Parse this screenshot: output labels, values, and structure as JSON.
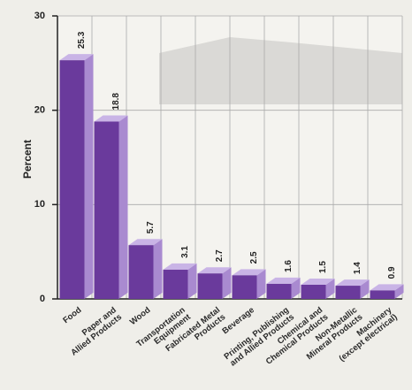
{
  "chart_data": {
    "type": "bar",
    "y_label": "Percent",
    "categories": [
      "Food",
      "Paper and\nAllied Products",
      "Wood",
      "Transportation\nEquipment",
      "Fabricated Metal\nProducts",
      "Beverage",
      "Printing, Publishing\nand Allied Products",
      "Chemical and\nChemical Products",
      "Non-Metallic\nMineral Products",
      "Machinery\n(except electrical)"
    ],
    "values": [
      25.3,
      18.8,
      5.7,
      3.1,
      2.7,
      2.5,
      1.6,
      1.5,
      1.4,
      0.9
    ],
    "color": "#6a3a9c",
    "ylim": [
      0,
      30
    ],
    "yticks": [
      0,
      10,
      20,
      30
    ],
    "grid": true
  }
}
